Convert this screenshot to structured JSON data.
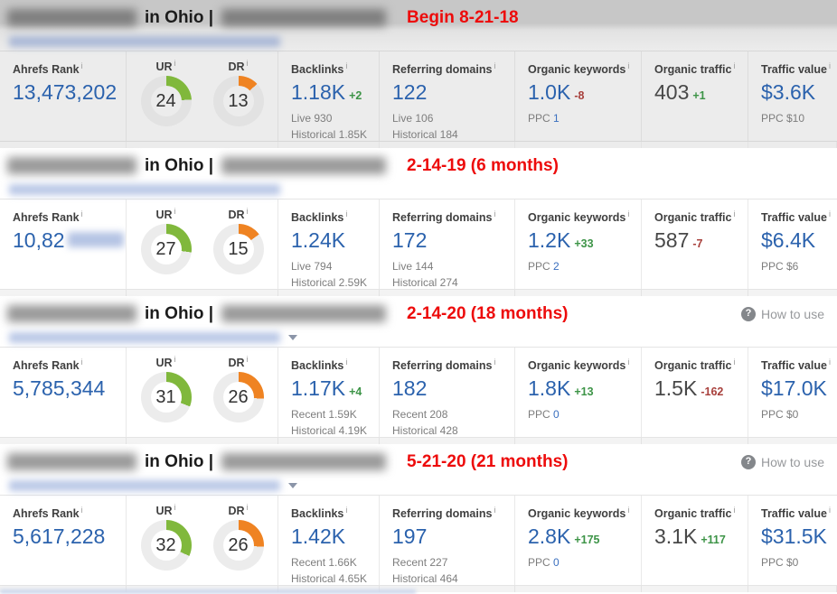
{
  "ui": {
    "how_to_use": "How to use",
    "question_glyph": "?",
    "info_mark": "i"
  },
  "colors": {
    "value_blue": "#2b62ad",
    "delta_green": "#3d9447",
    "delta_red": "#a8403c",
    "annotation_red": "#ed0b0b",
    "ur_arc_green": "#80b83c",
    "dr_arc_orange": "#ef8322"
  },
  "panels": [
    {
      "dim": "true",
      "title_mid": "in Ohio |",
      "annotation": "Begin 8-21-18",
      "ui": {
        "top_strip": "false",
        "bottom_strip": "true",
        "how_to_use": "false",
        "caret": "false",
        "blue_bar": "false"
      },
      "rank": {
        "label": "Ahrefs Rank",
        "value": "13,473,202",
        "suffix_blur": "false"
      },
      "ur": {
        "label": "UR",
        "value": "24"
      },
      "dr": {
        "label": "DR",
        "value": "13"
      },
      "backlinks": {
        "label": "Backlinks",
        "value": "1.18K",
        "delta": "+2",
        "delta_tone": "pos",
        "sub1": "Live 930",
        "sub2": "Historical 1.85K"
      },
      "refdomains": {
        "label": "Referring domains",
        "value": "122",
        "sub1": "Live 106",
        "sub2": "Historical 184"
      },
      "keywords": {
        "label": "Organic keywords",
        "value": "1.0K",
        "delta": "-8",
        "delta_tone": "neg",
        "ppc_label": "PPC",
        "ppc_value": "1"
      },
      "traffic": {
        "label": "Organic traffic",
        "value": "403",
        "delta": "+1",
        "delta_tone": "pos"
      },
      "value": {
        "label": "Traffic value",
        "value": "$3.6K",
        "ppc": "PPC $10"
      }
    },
    {
      "dim": "false",
      "title_mid": "in Ohio |",
      "annotation": "2-14-19 (6 months)",
      "ui": {
        "top_strip": "false",
        "bottom_strip": "false",
        "how_to_use": "false",
        "caret": "false",
        "blue_bar": "false"
      },
      "rank": {
        "label": "Ahrefs Rank",
        "value": "10,82",
        "suffix_blur": "true"
      },
      "ur": {
        "label": "UR",
        "value": "27"
      },
      "dr": {
        "label": "DR",
        "value": "15"
      },
      "backlinks": {
        "label": "Backlinks",
        "value": "1.24K",
        "delta": "",
        "delta_tone": "",
        "sub1": "Live 794",
        "sub2": "Historical 2.59K"
      },
      "refdomains": {
        "label": "Referring domains",
        "value": "172",
        "sub1": "Live 144",
        "sub2": "Historical 274"
      },
      "keywords": {
        "label": "Organic keywords",
        "value": "1.2K",
        "delta": "+33",
        "delta_tone": "pos",
        "ppc_label": "PPC",
        "ppc_value": "2"
      },
      "traffic": {
        "label": "Organic traffic",
        "value": "587",
        "delta": "-7",
        "delta_tone": "neg"
      },
      "value": {
        "label": "Traffic value",
        "value": "$6.4K",
        "ppc": "PPC $6"
      }
    },
    {
      "dim": "false",
      "title_mid": "in Ohio |",
      "annotation": "2-14-20 (18 months)",
      "ui": {
        "top_strip": "true",
        "bottom_strip": "false",
        "how_to_use": "true",
        "caret": "true",
        "blue_bar": "false"
      },
      "rank": {
        "label": "Ahrefs Rank",
        "value": "5,785,344",
        "suffix_blur": "false"
      },
      "ur": {
        "label": "UR",
        "value": "31"
      },
      "dr": {
        "label": "DR",
        "value": "26"
      },
      "backlinks": {
        "label": "Backlinks",
        "value": "1.17K",
        "delta": "+4",
        "delta_tone": "pos",
        "sub1": "Recent 1.59K",
        "sub2": "Historical 4.19K"
      },
      "refdomains": {
        "label": "Referring domains",
        "value": "182",
        "sub1": "Recent 208",
        "sub2": "Historical 428"
      },
      "keywords": {
        "label": "Organic keywords",
        "value": "1.8K",
        "delta": "+13",
        "delta_tone": "pos",
        "ppc_label": "PPC",
        "ppc_value": "0"
      },
      "traffic": {
        "label": "Organic traffic",
        "value": "1.5K",
        "delta": "-162",
        "delta_tone": "neg"
      },
      "value": {
        "label": "Traffic value",
        "value": "$17.0K",
        "ppc": "PPC $0"
      }
    },
    {
      "dim": "false",
      "title_mid": "in Ohio |",
      "annotation": "5-21-20 (21 months)",
      "ui": {
        "top_strip": "true",
        "bottom_strip": "true",
        "how_to_use": "true",
        "caret": "true",
        "blue_bar": "true"
      },
      "rank": {
        "label": "Ahrefs Rank",
        "value": "5,617,228",
        "suffix_blur": "false"
      },
      "ur": {
        "label": "UR",
        "value": "32"
      },
      "dr": {
        "label": "DR",
        "value": "26"
      },
      "backlinks": {
        "label": "Backlinks",
        "value": "1.42K",
        "delta": "",
        "delta_tone": "",
        "sub1": "Recent 1.66K",
        "sub2": "Historical 4.65K"
      },
      "refdomains": {
        "label": "Referring domains",
        "value": "197",
        "sub1": "Recent 227",
        "sub2": "Historical 464"
      },
      "keywords": {
        "label": "Organic keywords",
        "value": "2.8K",
        "delta": "+175",
        "delta_tone": "pos",
        "ppc_label": "PPC",
        "ppc_value": "0"
      },
      "traffic": {
        "label": "Organic traffic",
        "value": "3.1K",
        "delta": "+117",
        "delta_tone": "pos"
      },
      "value": {
        "label": "Traffic value",
        "value": "$31.5K",
        "ppc": "PPC $0"
      }
    }
  ]
}
